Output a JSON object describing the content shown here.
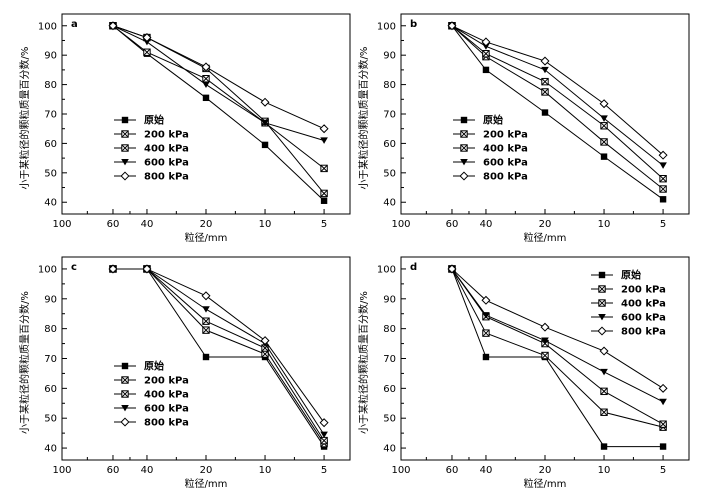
{
  "figure": {
    "x_ticks": [
      100,
      60,
      40,
      20,
      10,
      5
    ],
    "y_ticks": [
      40,
      50,
      60,
      70,
      80,
      90,
      100
    ],
    "xlabel": "粒径/mm",
    "ylabel": "小于某粒径的颗粒质量百分数/%"
  },
  "chart_data": [
    {
      "panel": "a",
      "type": "line",
      "xlabel": "粒径/mm",
      "ylabel": "小于某粒径的颗粒质量百分数/%",
      "ylim": [
        36,
        104
      ],
      "x_ticks": [
        100,
        60,
        40,
        20,
        10,
        5
      ],
      "x": [
        60,
        40,
        20,
        10,
        5
      ],
      "legend_position": "bottom-left",
      "series": [
        {
          "name": "原始",
          "marker": "square-filled",
          "values": [
            100,
            90.5,
            75.5,
            59.5,
            40.5
          ]
        },
        {
          "name": "200 kPa",
          "marker": "square-x",
          "values": [
            100,
            91,
            82,
            67,
            51.5
          ]
        },
        {
          "name": "400 kPa",
          "marker": "square-x",
          "values": [
            100,
            96,
            85.5,
            67.5,
            43
          ]
        },
        {
          "name": "600 kPa",
          "marker": "triangle-down",
          "values": [
            100,
            94.5,
            80,
            67,
            61
          ]
        },
        {
          "name": "800 kPa",
          "marker": "diamond-open",
          "values": [
            100,
            96,
            86,
            74,
            65
          ]
        }
      ]
    },
    {
      "panel": "b",
      "type": "line",
      "xlabel": "粒径/mm",
      "ylabel": "小于某粒径的颗粒质量百分数/%",
      "ylim": [
        36,
        104
      ],
      "x_ticks": [
        100,
        60,
        40,
        20,
        10,
        5
      ],
      "x": [
        60,
        40,
        20,
        10,
        5
      ],
      "legend_position": "bottom-left",
      "series": [
        {
          "name": "原始",
          "marker": "square-filled",
          "values": [
            100,
            85,
            70.5,
            55.5,
            41
          ]
        },
        {
          "name": "200 kPa",
          "marker": "square-x",
          "values": [
            100,
            89.5,
            77.5,
            60.5,
            44.5
          ]
        },
        {
          "name": "400 kPa",
          "marker": "square-x",
          "values": [
            100,
            90.5,
            81,
            66,
            48
          ]
        },
        {
          "name": "600 kPa",
          "marker": "triangle-down",
          "values": [
            100,
            93,
            85,
            68.5,
            52.5
          ]
        },
        {
          "name": "800 kPa",
          "marker": "diamond-open",
          "values": [
            100,
            94.5,
            88,
            73.5,
            56
          ]
        }
      ]
    },
    {
      "panel": "c",
      "type": "line",
      "xlabel": "粒径/mm",
      "ylabel": "小于某粒径的颗粒质量百分数/%",
      "ylim": [
        36,
        104
      ],
      "x_ticks": [
        100,
        60,
        40,
        20,
        10,
        5
      ],
      "x": [
        60,
        40,
        20,
        10,
        5
      ],
      "legend_position": "bottom-left",
      "series": [
        {
          "name": "原始",
          "marker": "square-filled",
          "values": [
            100,
            100,
            70.5,
            70.5,
            40.5
          ]
        },
        {
          "name": "200 kPa",
          "marker": "square-x",
          "values": [
            100,
            100,
            79.5,
            71.5,
            41.5
          ]
        },
        {
          "name": "400 kPa",
          "marker": "square-x",
          "values": [
            100,
            100,
            82.5,
            73.5,
            42.5
          ]
        },
        {
          "name": "600 kPa",
          "marker": "triangle-down",
          "values": [
            100,
            100,
            86.5,
            75,
            44.5
          ]
        },
        {
          "name": "800 kPa",
          "marker": "diamond-open",
          "values": [
            100,
            100,
            91,
            76,
            48.5
          ]
        }
      ]
    },
    {
      "panel": "d",
      "type": "line",
      "xlabel": "粒径/mm",
      "ylabel": "小于某粒径的颗粒质量百分数/%",
      "ylim": [
        36,
        104
      ],
      "x_ticks": [
        100,
        60,
        40,
        20,
        10,
        5
      ],
      "x": [
        60,
        40,
        20,
        10,
        5
      ],
      "legend_position": "top-right",
      "series": [
        {
          "name": "原始",
          "marker": "square-filled",
          "values": [
            100,
            70.5,
            70.5,
            40.5,
            40.5
          ]
        },
        {
          "name": "200 kPa",
          "marker": "square-x",
          "values": [
            100,
            78.5,
            71,
            52,
            47
          ]
        },
        {
          "name": "400 kPa",
          "marker": "square-x",
          "values": [
            100,
            84,
            75,
            59,
            48
          ]
        },
        {
          "name": "600 kPa",
          "marker": "triangle-down",
          "values": [
            100,
            84.5,
            76,
            65.5,
            55.5
          ]
        },
        {
          "name": "800 kPa",
          "marker": "diamond-open",
          "values": [
            100,
            89.5,
            80.5,
            72.5,
            60
          ]
        }
      ]
    }
  ]
}
